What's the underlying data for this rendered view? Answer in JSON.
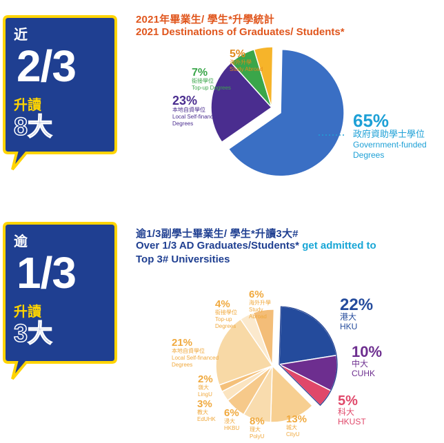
{
  "section1": {
    "bubble": {
      "prefix": "近",
      "fraction": "2/3",
      "verb": "升讀",
      "target": "8大"
    },
    "title_zh": "2021年畢業生/ 學生*升學統計",
    "title_en": "2021 Destinations of Graduates/ Students*",
    "colors": {
      "bubble": "#1f3f91",
      "bubble_border": "#ffd400"
    },
    "chart_data": {
      "type": "pie",
      "slices": [
        {
          "pct": "65%",
          "label_zh": "政府資助學士學位",
          "label_en": [
            "Government-funded",
            "Degrees"
          ],
          "value": 65,
          "color": "#3a6fc4",
          "label_color": "#1da0d6"
        },
        {
          "pct": "23%",
          "label_zh": "本地自資學位",
          "label_en": [
            "Local Self-financed",
            "Degrees"
          ],
          "value": 23,
          "color": "#4a2d8f",
          "label_color": "#4a2d8f"
        },
        {
          "pct": "7%",
          "label_zh": "銜接學位",
          "label_en": [
            "Top-up Degrees"
          ],
          "value": 7,
          "color": "#3aa64a",
          "label_color": "#3aa64a"
        },
        {
          "pct": "5%",
          "label_zh": "海外升學",
          "label_en": [
            "Study Abroad"
          ],
          "value": 5,
          "color": "#f6b42a",
          "label_color": "#e08a1c"
        }
      ]
    }
  },
  "section2": {
    "bubble": {
      "prefix": "逾",
      "fraction": "1/3",
      "verb": "升讀",
      "target": "3大"
    },
    "title_zh": "逾1/3副學士畢業生/ 學生*升讀3大#",
    "title_en_line1_a": "Over 1/3 AD Graduates/Students*",
    "title_en_line1_b": " get admitted to",
    "title_en_line2": "Top 3# Universities",
    "colors": {
      "bubble": "#1f3f91",
      "bubble_border": "#ffd400"
    },
    "chart_data": {
      "type": "pie",
      "slices": [
        {
          "pct": "22%",
          "label_zh": "港大",
          "label_en": [
            "HKU"
          ],
          "value": 22,
          "color": "#244b9c",
          "label_color": "#244b9c",
          "exploded": true
        },
        {
          "pct": "10%",
          "label_zh": "中大",
          "label_en": [
            "CUHK"
          ],
          "value": 10,
          "color": "#6d2e8f",
          "label_color": "#6d2e8f",
          "exploded": true
        },
        {
          "pct": "5%",
          "label_zh": "科大",
          "label_en": [
            "HKUST"
          ],
          "value": 5,
          "color": "#e0486a",
          "label_color": "#e0486a",
          "exploded": true
        },
        {
          "pct": "13%",
          "label_zh": "城大",
          "label_en": [
            "CityU"
          ],
          "value": 13,
          "color": "#f7cf91",
          "label_color": "#f0a93e"
        },
        {
          "pct": "8%",
          "label_zh": "理大",
          "label_en": [
            "PolyU"
          ],
          "value": 8,
          "color": "#f9dcae",
          "label_color": "#f0a93e"
        },
        {
          "pct": "6%",
          "label_zh": "浸大",
          "label_en": [
            "HKBU"
          ],
          "value": 6,
          "color": "#f6c98a",
          "label_color": "#f0a93e"
        },
        {
          "pct": "3%",
          "label_zh": "教大",
          "label_en": [
            "EdUHK"
          ],
          "value": 3,
          "color": "#fbe4c0",
          "label_color": "#f0a93e"
        },
        {
          "pct": "2%",
          "label_zh": "嶺大",
          "label_en": [
            "LingU"
          ],
          "value": 2,
          "color": "#f4c07a",
          "label_color": "#f0a93e"
        },
        {
          "pct": "21%",
          "label_zh": "本地自資學位",
          "label_en": [
            "Local Self-financed",
            "Degrees"
          ],
          "value": 21,
          "color": "#f8d9a6",
          "label_color": "#f0a93e"
        },
        {
          "pct": "4%",
          "label_zh": "銜接學位",
          "label_en": [
            "Top-up",
            "Degrees"
          ],
          "value": 4,
          "color": "#fbe9cd",
          "label_color": "#f0a93e"
        },
        {
          "pct": "6%",
          "label_zh": "海外升學",
          "label_en": [
            "Study",
            "Abroad"
          ],
          "value": 6,
          "color": "#f3bd78",
          "label_color": "#f0a93e"
        }
      ]
    }
  }
}
